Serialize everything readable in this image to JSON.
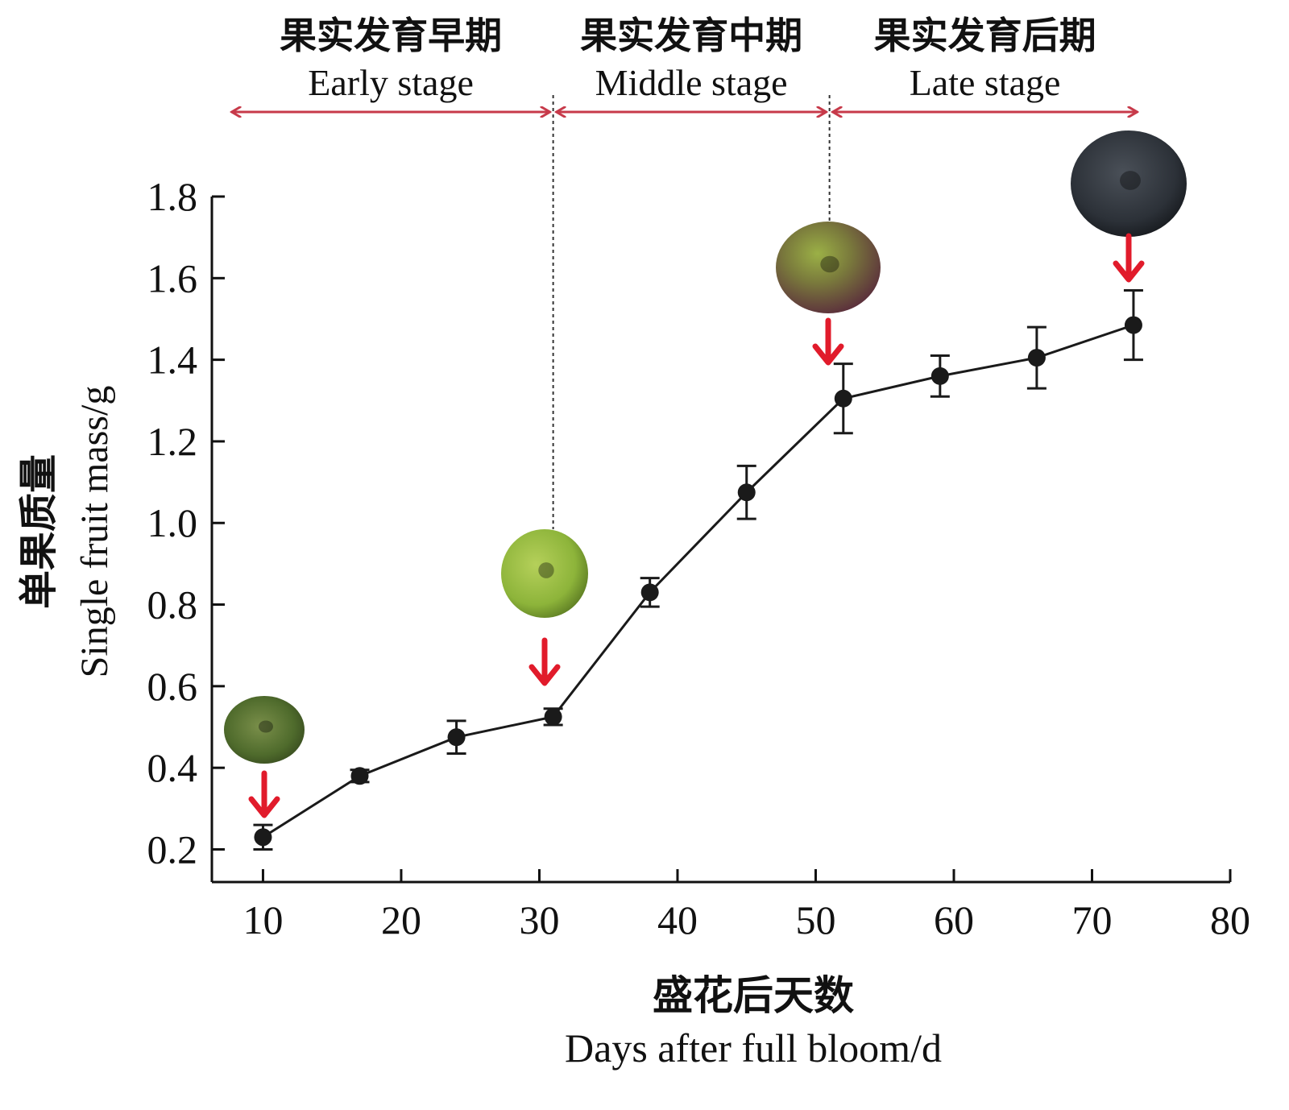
{
  "chart_data": {
    "type": "line",
    "title": "",
    "xlabel_cn": "盛花后天数",
    "xlabel_en": "Days after full bloom/d",
    "ylabel_cn": "单果质量",
    "ylabel_en": "Single fruit mass/g",
    "xlim": [
      6.3,
      80
    ],
    "ylim": [
      0.12,
      1.8
    ],
    "x_ticks": [
      10,
      20,
      30,
      40,
      50,
      60,
      70,
      80
    ],
    "x_tick_labels": [
      "10",
      "20",
      "30",
      "40",
      "50",
      "60",
      "70",
      "80"
    ],
    "y_ticks": [
      0.2,
      0.4,
      0.6,
      0.8,
      1.0,
      1.2,
      1.4,
      1.6,
      1.8
    ],
    "y_tick_labels": [
      "0.2",
      "0.4",
      "0.6",
      "0.8",
      "1.0",
      "1.2",
      "1.4",
      "1.6",
      "1.8"
    ],
    "series": [
      {
        "name": "Single fruit mass",
        "x": [
          10,
          17,
          24,
          31,
          38,
          45,
          52,
          59,
          66,
          73
        ],
        "values": [
          0.23,
          0.38,
          0.475,
          0.525,
          0.83,
          1.075,
          1.305,
          1.36,
          1.405,
          1.485
        ],
        "error": [
          0.03,
          0.015,
          0.04,
          0.02,
          0.035,
          0.065,
          0.085,
          0.05,
          0.075,
          0.085
        ]
      }
    ],
    "stages": [
      {
        "cn": "果实发育早期",
        "en": "Early stage",
        "from": 7.5,
        "to": 31
      },
      {
        "cn": "果实发育中期",
        "en": "Middle stage",
        "from": 31,
        "to": 51
      },
      {
        "cn": "果实发育后期",
        "en": "Late stage",
        "from": 51,
        "to": 73.5
      }
    ],
    "stage_dividers": [
      31,
      51
    ],
    "fruit_markers": [
      {
        "x": 10,
        "color": "#52702e",
        "name": "early"
      },
      {
        "x": 31,
        "color": "#8db43a",
        "name": "green"
      },
      {
        "x": 52,
        "color": "#6e6640",
        "name": "turning"
      },
      {
        "x": 73,
        "color": "#2c3138",
        "name": "ripe"
      }
    ],
    "colors": {
      "line": "#1a1a1a",
      "accent_arrow": "#e11b2b",
      "stage_arrow": "#c73a4a",
      "divider": "#333333"
    }
  }
}
